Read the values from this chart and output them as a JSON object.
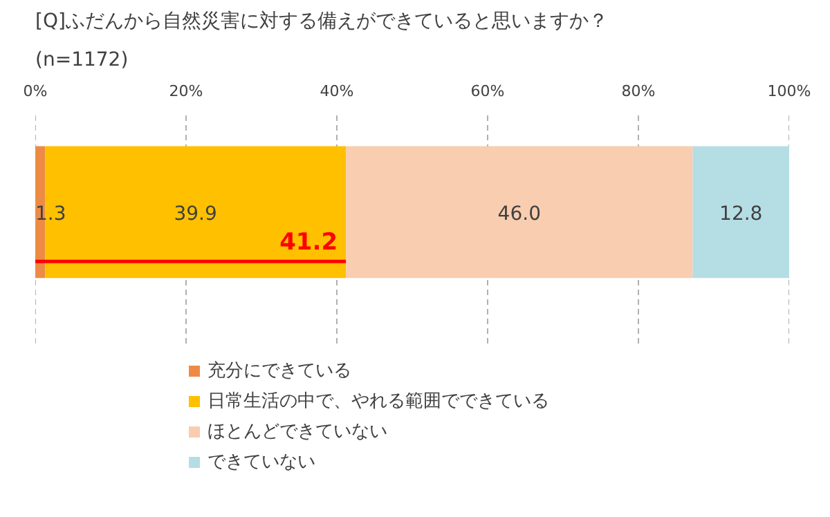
{
  "chart_data": {
    "type": "bar",
    "orientation": "horizontal",
    "stacked": true,
    "title": "[Q]ふだんから自然災害に対する備えができていると思いますか？",
    "subtitle": "(n=1172)",
    "categories": [
      null
    ],
    "series": [
      {
        "name": "充分にできている",
        "color": "#ed8b45",
        "values": [
          1.3
        ],
        "value_labels": [
          "1.3"
        ]
      },
      {
        "name": "日常生活の中で、やれる範囲でできている",
        "color": "#ffc000",
        "values": [
          39.9
        ],
        "value_labels": [
          "39.9"
        ]
      },
      {
        "name": "ほとんどできていない",
        "color": "#f8cdb0",
        "values": [
          46.0
        ],
        "value_labels": [
          "46.0"
        ]
      },
      {
        "name": "できていない",
        "color": "#b5dde4",
        "values": [
          12.8
        ],
        "value_labels": [
          "12.8"
        ]
      }
    ],
    "xlim": [
      0,
      100
    ],
    "xticks": [
      {
        "value": 0,
        "label": "0%"
      },
      {
        "value": 20,
        "label": "20%"
      },
      {
        "value": 40,
        "label": "40%"
      },
      {
        "value": 60,
        "label": "60%"
      },
      {
        "value": 80,
        "label": "80%"
      },
      {
        "value": 100,
        "label": "100%"
      }
    ],
    "grid": "x",
    "legend": "bottom",
    "annotations": [
      {
        "text": "41.2",
        "x": 41.2
      }
    ]
  }
}
